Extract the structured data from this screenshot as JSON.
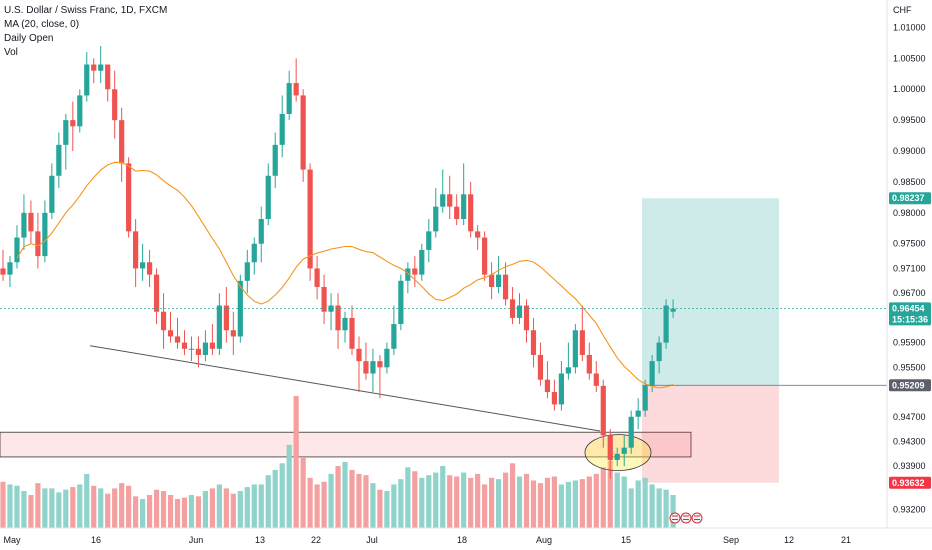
{
  "legend": {
    "title": "U.S. Dollar / Swiss Franc, 1D, FXCM",
    "ma": "MA (20, close, 0)",
    "daily_open": "Daily Open",
    "vol": "Vol"
  },
  "chart_data": {
    "type": "candlestick",
    "currency": "CHF",
    "ylim": [
      0.929,
      1.0125
    ],
    "y_ticks": [
      "1.01000",
      "1.00500",
      "1.00000",
      "0.99500",
      "0.99000",
      "0.98500",
      "0.98000",
      "0.97500",
      "0.97100",
      "0.96700",
      "0.95900",
      "0.95500",
      "0.94700",
      "0.94300",
      "0.93900",
      "0.93200"
    ],
    "x_ticks": [
      "May",
      "16",
      "Jun",
      "13",
      "22",
      "Jul",
      "18",
      "Aug",
      "15",
      "Sep",
      "12",
      "21"
    ],
    "price_badges": [
      {
        "label": "0.98237",
        "value": 0.98237,
        "color": "#26a69a"
      },
      {
        "label": "0.96454",
        "value": 0.96454,
        "color": "#26a69a"
      },
      {
        "label": "15:15:36",
        "value": 0.9633,
        "color": "#26a69a"
      },
      {
        "label": "0.95209",
        "value": 0.95209,
        "color": "#5d606b"
      },
      {
        "label": "0.93632",
        "value": 0.93632,
        "color": "#f23645"
      }
    ],
    "colors": {
      "up": "#26a69a",
      "down": "#ef5350",
      "ma": "#f7941d",
      "vol_up": "#8fd3cb",
      "vol_down": "#f5a0a0"
    },
    "candles": [
      [
        0.971,
        0.974,
        0.969,
        0.97
      ],
      [
        0.97,
        0.973,
        0.968,
        0.972
      ],
      [
        0.972,
        0.978,
        0.971,
        0.976
      ],
      [
        0.976,
        0.983,
        0.974,
        0.98
      ],
      [
        0.98,
        0.982,
        0.975,
        0.977
      ],
      [
        0.977,
        0.98,
        0.971,
        0.973
      ],
      [
        0.973,
        0.982,
        0.972,
        0.98
      ],
      [
        0.98,
        0.988,
        0.979,
        0.986
      ],
      [
        0.986,
        0.993,
        0.984,
        0.991
      ],
      [
        0.991,
        0.996,
        0.987,
        0.995
      ],
      [
        0.995,
        0.998,
        0.99,
        0.994
      ],
      [
        0.994,
        1.0,
        0.993,
        0.999
      ],
      [
        0.999,
        1.006,
        0.998,
        1.004
      ],
      [
        1.004,
        1.005,
        1.001,
        1.003
      ],
      [
        1.003,
        1.007,
        1.001,
        1.004
      ],
      [
        1.004,
        1.004,
        0.998,
        1.0
      ],
      [
        1.0,
        1.003,
        0.992,
        0.995
      ],
      [
        0.995,
        0.997,
        0.985,
        0.988
      ],
      [
        0.988,
        0.989,
        0.976,
        0.977
      ],
      [
        0.977,
        0.979,
        0.968,
        0.971
      ],
      [
        0.971,
        0.975,
        0.969,
        0.972
      ],
      [
        0.972,
        0.974,
        0.968,
        0.97
      ],
      [
        0.97,
        0.971,
        0.962,
        0.964
      ],
      [
        0.964,
        0.967,
        0.958,
        0.961
      ],
      [
        0.961,
        0.964,
        0.959,
        0.96
      ],
      [
        0.96,
        0.963,
        0.958,
        0.959
      ],
      [
        0.959,
        0.961,
        0.957,
        0.958
      ],
      [
        0.958,
        0.96,
        0.956,
        0.958
      ],
      [
        0.958,
        0.96,
        0.955,
        0.957
      ],
      [
        0.957,
        0.961,
        0.956,
        0.959
      ],
      [
        0.959,
        0.962,
        0.957,
        0.958
      ],
      [
        0.958,
        0.967,
        0.957,
        0.965
      ],
      [
        0.965,
        0.968,
        0.959,
        0.961
      ],
      [
        0.961,
        0.964,
        0.957,
        0.96
      ],
      [
        0.96,
        0.97,
        0.959,
        0.969
      ],
      [
        0.969,
        0.974,
        0.967,
        0.972
      ],
      [
        0.972,
        0.976,
        0.97,
        0.975
      ],
      [
        0.975,
        0.981,
        0.972,
        0.979
      ],
      [
        0.979,
        0.988,
        0.978,
        0.986
      ],
      [
        0.986,
        0.993,
        0.984,
        0.991
      ],
      [
        0.991,
        0.999,
        0.989,
        0.996
      ],
      [
        0.996,
        1.003,
        0.995,
        1.001
      ],
      [
        1.001,
        1.005,
        0.998,
        0.999
      ],
      [
        0.999,
        1.0,
        0.985,
        0.987
      ],
      [
        0.987,
        0.988,
        0.969,
        0.971
      ],
      [
        0.971,
        0.973,
        0.966,
        0.968
      ],
      [
        0.968,
        0.97,
        0.962,
        0.964
      ],
      [
        0.964,
        0.967,
        0.961,
        0.965
      ],
      [
        0.965,
        0.967,
        0.958,
        0.961
      ],
      [
        0.961,
        0.964,
        0.959,
        0.963
      ],
      [
        0.963,
        0.965,
        0.957,
        0.958
      ],
      [
        0.958,
        0.96,
        0.951,
        0.956
      ],
      [
        0.956,
        0.959,
        0.953,
        0.954
      ],
      [
        0.954,
        0.958,
        0.951,
        0.956
      ],
      [
        0.956,
        0.957,
        0.95,
        0.955
      ],
      [
        0.955,
        0.959,
        0.954,
        0.958
      ],
      [
        0.958,
        0.965,
        0.957,
        0.962
      ],
      [
        0.962,
        0.97,
        0.961,
        0.969
      ],
      [
        0.969,
        0.972,
        0.967,
        0.971
      ],
      [
        0.971,
        0.973,
        0.968,
        0.97
      ],
      [
        0.97,
        0.975,
        0.969,
        0.974
      ],
      [
        0.974,
        0.979,
        0.972,
        0.977
      ],
      [
        0.977,
        0.984,
        0.976,
        0.981
      ],
      [
        0.981,
        0.987,
        0.98,
        0.983
      ],
      [
        0.983,
        0.986,
        0.979,
        0.981
      ],
      [
        0.981,
        0.983,
        0.978,
        0.979
      ],
      [
        0.979,
        0.988,
        0.978,
        0.983
      ],
      [
        0.983,
        0.985,
        0.976,
        0.977
      ],
      [
        0.977,
        0.978,
        0.974,
        0.976
      ],
      [
        0.976,
        0.977,
        0.969,
        0.97
      ],
      [
        0.97,
        0.972,
        0.966,
        0.968
      ],
      [
        0.968,
        0.973,
        0.967,
        0.97
      ],
      [
        0.97,
        0.972,
        0.965,
        0.966
      ],
      [
        0.966,
        0.968,
        0.962,
        0.963
      ],
      [
        0.963,
        0.967,
        0.962,
        0.965
      ],
      [
        0.965,
        0.966,
        0.959,
        0.961
      ],
      [
        0.961,
        0.963,
        0.955,
        0.957
      ],
      [
        0.957,
        0.959,
        0.952,
        0.953
      ],
      [
        0.953,
        0.956,
        0.95,
        0.951
      ],
      [
        0.951,
        0.953,
        0.948,
        0.949
      ],
      [
        0.949,
        0.956,
        0.948,
        0.954
      ],
      [
        0.954,
        0.959,
        0.953,
        0.955
      ],
      [
        0.955,
        0.962,
        0.954,
        0.961
      ],
      [
        0.961,
        0.965,
        0.956,
        0.957
      ],
      [
        0.957,
        0.959,
        0.953,
        0.954
      ],
      [
        0.954,
        0.956,
        0.951,
        0.952
      ],
      [
        0.952,
        0.953,
        0.942,
        0.944
      ],
      [
        0.944,
        0.945,
        0.937,
        0.94
      ],
      [
        0.94,
        0.942,
        0.939,
        0.941
      ],
      [
        0.941,
        0.944,
        0.939,
        0.942
      ],
      [
        0.942,
        0.948,
        0.941,
        0.947
      ],
      [
        0.947,
        0.95,
        0.945,
        0.948
      ],
      [
        0.948,
        0.953,
        0.947,
        0.952
      ],
      [
        0.952,
        0.957,
        0.951,
        0.956
      ],
      [
        0.956,
        0.96,
        0.954,
        0.959
      ],
      [
        0.959,
        0.966,
        0.958,
        0.965
      ],
      [
        0.964,
        0.966,
        0.963,
        0.9645
      ]
    ],
    "volumes": [
      0.35,
      0.33,
      0.32,
      0.28,
      0.25,
      0.34,
      0.3,
      0.3,
      0.27,
      0.29,
      0.31,
      0.33,
      0.41,
      0.32,
      0.3,
      0.26,
      0.3,
      0.34,
      0.32,
      0.24,
      0.22,
      0.25,
      0.29,
      0.28,
      0.25,
      0.22,
      0.23,
      0.25,
      0.24,
      0.28,
      0.3,
      0.33,
      0.3,
      0.26,
      0.28,
      0.31,
      0.33,
      0.33,
      0.4,
      0.44,
      0.49,
      0.63,
      1.0,
      0.53,
      0.38,
      0.33,
      0.35,
      0.41,
      0.47,
      0.5,
      0.44,
      0.41,
      0.4,
      0.34,
      0.29,
      0.28,
      0.33,
      0.37,
      0.46,
      0.43,
      0.38,
      0.4,
      0.42,
      0.47,
      0.4,
      0.39,
      0.42,
      0.38,
      0.41,
      0.33,
      0.38,
      0.37,
      0.42,
      0.49,
      0.39,
      0.41,
      0.36,
      0.34,
      0.38,
      0.39,
      0.33,
      0.35,
      0.36,
      0.37,
      0.39,
      0.41,
      0.46,
      0.51,
      0.42,
      0.39,
      0.3,
      0.36,
      0.38,
      0.33,
      0.3,
      0.29,
      0.25
    ]
  },
  "position": {
    "entry": 0.95209,
    "target": 0.98237,
    "stop": 0.93632
  },
  "zone": {
    "top": 0.9445,
    "bottom": 0.9405
  },
  "trendline": {
    "start": 0.9585,
    "end": 0.9447
  },
  "ma_color": "#f7941d"
}
